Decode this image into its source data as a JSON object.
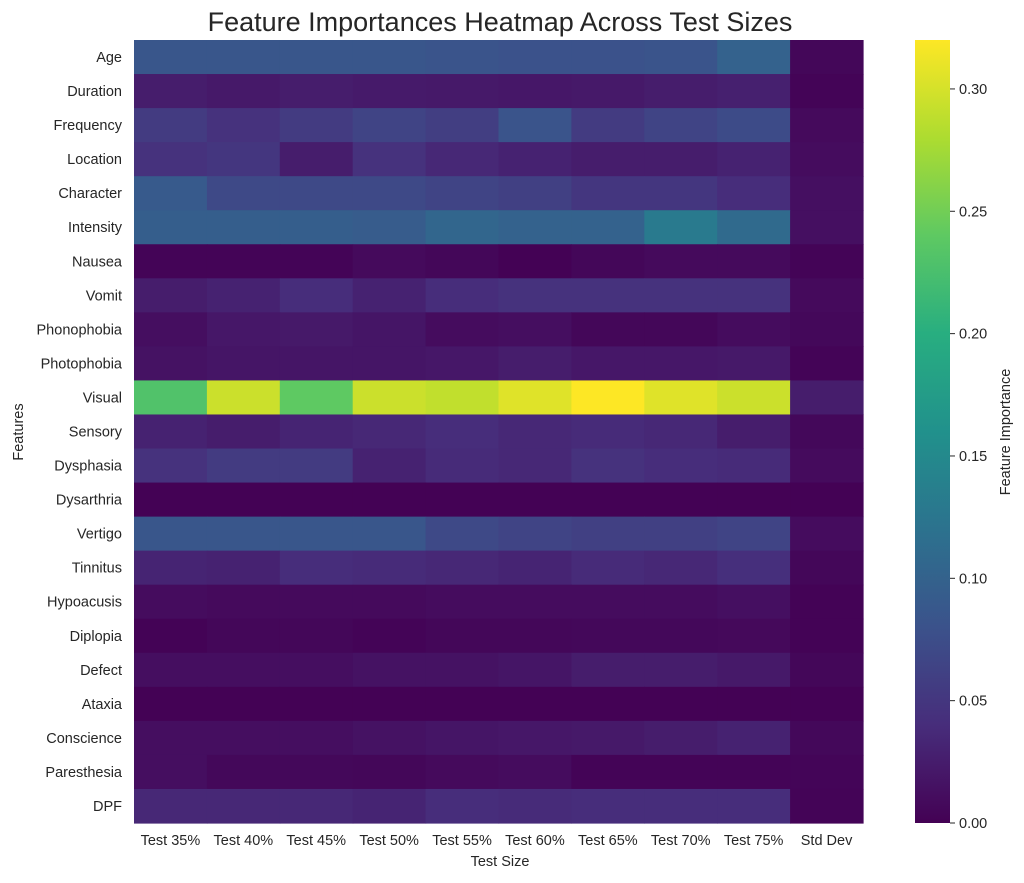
{
  "chart_data": {
    "type": "heatmap",
    "title": "Feature Importances Heatmap Across Test Sizes",
    "xlabel": "Test Size",
    "ylabel": "Features",
    "colorbar_label": "Feature Importance",
    "colormap": "viridis",
    "vmin": 0.0,
    "vmax": 0.32,
    "colorbar_ticks": [
      "0.00",
      "0.05",
      "0.10",
      "0.15",
      "0.20",
      "0.25",
      "0.30"
    ],
    "columns": [
      "Test 35%",
      "Test 40%",
      "Test 45%",
      "Test 50%",
      "Test 55%",
      "Test 60%",
      "Test 65%",
      "Test 70%",
      "Test 75%",
      "Std Dev"
    ],
    "rows": [
      "Age",
      "Duration",
      "Frequency",
      "Location",
      "Character",
      "Intensity",
      "Nausea",
      "Vomit",
      "Phonophobia",
      "Photophobia",
      "Visual",
      "Sensory",
      "Dysphasia",
      "Dysarthria",
      "Vertigo",
      "Tinnitus",
      "Hypoacusis",
      "Diplopia",
      "Defect",
      "Ataxia",
      "Conscience",
      "Paresthesia",
      "DPF"
    ],
    "values": [
      [
        0.085,
        0.085,
        0.085,
        0.085,
        0.082,
        0.08,
        0.08,
        0.082,
        0.1,
        0.005
      ],
      [
        0.025,
        0.022,
        0.025,
        0.023,
        0.022,
        0.02,
        0.022,
        0.025,
        0.028,
        0.003
      ],
      [
        0.055,
        0.045,
        0.055,
        0.065,
        0.058,
        0.082,
        0.055,
        0.065,
        0.072,
        0.008
      ],
      [
        0.045,
        0.05,
        0.025,
        0.045,
        0.035,
        0.03,
        0.025,
        0.025,
        0.03,
        0.01
      ],
      [
        0.09,
        0.07,
        0.07,
        0.07,
        0.065,
        0.06,
        0.05,
        0.05,
        0.04,
        0.013
      ],
      [
        0.095,
        0.095,
        0.095,
        0.092,
        0.105,
        0.1,
        0.1,
        0.13,
        0.11,
        0.013
      ],
      [
        0.003,
        0.003,
        0.003,
        0.008,
        0.005,
        0.001,
        0.005,
        0.008,
        0.008,
        0.003
      ],
      [
        0.025,
        0.03,
        0.04,
        0.03,
        0.04,
        0.045,
        0.045,
        0.045,
        0.045,
        0.008
      ],
      [
        0.012,
        0.02,
        0.022,
        0.018,
        0.01,
        0.012,
        0.005,
        0.005,
        0.01,
        0.006
      ],
      [
        0.015,
        0.018,
        0.018,
        0.018,
        0.02,
        0.025,
        0.02,
        0.02,
        0.022,
        0.003
      ],
      [
        0.23,
        0.295,
        0.24,
        0.295,
        0.29,
        0.305,
        0.32,
        0.305,
        0.295,
        0.025
      ],
      [
        0.03,
        0.025,
        0.032,
        0.035,
        0.04,
        0.035,
        0.038,
        0.035,
        0.025,
        0.006
      ],
      [
        0.045,
        0.055,
        0.055,
        0.03,
        0.038,
        0.035,
        0.045,
        0.04,
        0.038,
        0.009
      ],
      [
        0.001,
        0.001,
        0.001,
        0.001,
        0.001,
        0.001,
        0.001,
        0.001,
        0.001,
        0.001
      ],
      [
        0.085,
        0.085,
        0.085,
        0.085,
        0.07,
        0.065,
        0.06,
        0.06,
        0.065,
        0.01
      ],
      [
        0.032,
        0.03,
        0.04,
        0.038,
        0.035,
        0.032,
        0.038,
        0.035,
        0.042,
        0.005
      ],
      [
        0.01,
        0.008,
        0.008,
        0.008,
        0.01,
        0.01,
        0.01,
        0.01,
        0.013,
        0.002
      ],
      [
        0.002,
        0.005,
        0.005,
        0.003,
        0.005,
        0.005,
        0.006,
        0.006,
        0.007,
        0.002
      ],
      [
        0.012,
        0.012,
        0.012,
        0.015,
        0.015,
        0.018,
        0.025,
        0.025,
        0.022,
        0.005
      ],
      [
        0.001,
        0.001,
        0.001,
        0.001,
        0.001,
        0.001,
        0.001,
        0.001,
        0.001,
        0.001
      ],
      [
        0.012,
        0.012,
        0.012,
        0.015,
        0.018,
        0.02,
        0.022,
        0.025,
        0.03,
        0.006
      ],
      [
        0.012,
        0.006,
        0.006,
        0.005,
        0.008,
        0.01,
        0.003,
        0.003,
        0.003,
        0.004
      ],
      [
        0.035,
        0.035,
        0.035,
        0.032,
        0.04,
        0.038,
        0.04,
        0.04,
        0.04,
        0.003
      ]
    ]
  }
}
